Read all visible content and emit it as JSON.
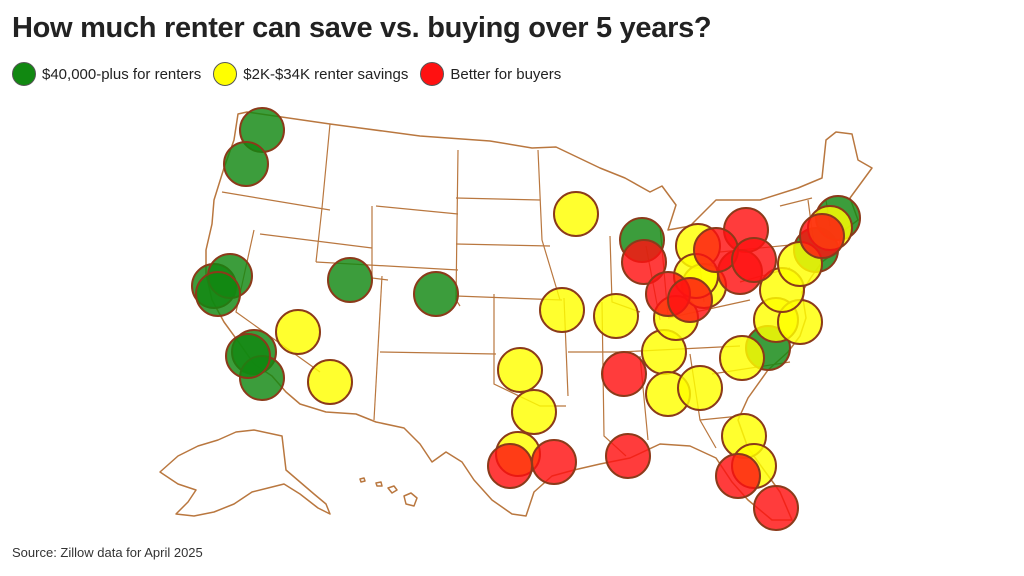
{
  "title": "How much renter can save vs. buying over 5 years?",
  "legend": [
    {
      "label": "$40,000-plus for renters",
      "color": "#118811"
    },
    {
      "label": "$2K-$34K renter savings",
      "color": "#ffff00"
    },
    {
      "label": "Better for buyers",
      "color": "#ff1111"
    }
  ],
  "source": "Source: Zillow data for April 2025",
  "colors": {
    "map_stroke": "#b9773f",
    "marker_stroke": "#8b3a1a"
  },
  "markers": [
    {
      "category": 0
    },
    {
      "category": 0
    },
    {
      "category": 0
    },
    {
      "category": 0
    },
    {
      "category": 0
    },
    {
      "category": 0
    },
    {
      "category": 0
    },
    {
      "category": 0
    },
    {
      "category": 0
    },
    {
      "category": 0
    },
    {
      "category": 0
    },
    {
      "category": 0
    },
    {
      "category": 0
    },
    {
      "category": 0
    },
    {
      "category": 1
    },
    {
      "category": 1
    },
    {
      "category": 1
    },
    {
      "category": 1
    },
    {
      "category": 1
    },
    {
      "category": 1
    },
    {
      "category": 1
    },
    {
      "category": 1
    },
    {
      "category": 1
    },
    {
      "category": 1
    },
    {
      "category": 1
    },
    {
      "category": 1
    },
    {
      "category": 1
    },
    {
      "category": 1
    },
    {
      "category": 1
    },
    {
      "category": 1
    },
    {
      "category": 1
    },
    {
      "category": 1
    },
    {
      "category": 1
    },
    {
      "category": 1
    },
    {
      "category": 1
    },
    {
      "category": 1
    },
    {
      "category": 1
    },
    {
      "category": 2
    },
    {
      "category": 2
    },
    {
      "category": 2
    },
    {
      "category": 2
    },
    {
      "category": 2
    },
    {
      "category": 2
    },
    {
      "category": 2
    },
    {
      "category": 2
    },
    {
      "category": 2
    },
    {
      "category": 2
    },
    {
      "category": 2
    },
    {
      "category": 2
    },
    {
      "category": 2
    },
    {
      "category": 2
    }
  ]
}
